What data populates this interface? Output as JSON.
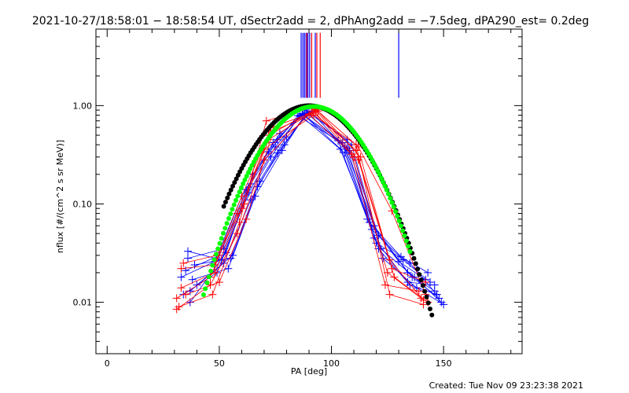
{
  "chart_data": {
    "type": "scatter",
    "title": "2021-10-27/18:58:01 − 18:58:54 UT, dSectr2add = 2, dPhAng2add = −7.5deg, dPA290_est=  0.2deg",
    "xlabel": "PA [deg]",
    "ylabel": "nflux [#/(cm^2 s sr MeV)]",
    "xlim": [
      -5,
      185
    ],
    "ylim": [
      0.003,
      6.0
    ],
    "yscale": "log",
    "x_ticks": [
      0,
      50,
      100,
      150
    ],
    "x_tick_labels": [
      "0",
      "50",
      "100",
      "150"
    ],
    "y_ticks": [
      0.01,
      0.1,
      1.0
    ],
    "y_tick_labels": [
      "0.01",
      "0.10",
      "1.00"
    ],
    "grid": false,
    "colors": {
      "blue": "#0000ff",
      "red": "#ff0000",
      "black": "#000000",
      "green": "#00ff00"
    },
    "fit_curves": [
      {
        "color": "black",
        "center": 90,
        "sigma": 17.5,
        "peak": 1.0,
        "x_range": [
          52,
          145
        ]
      },
      {
        "color": "green",
        "center": 92,
        "sigma": 16.5,
        "peak": 0.98,
        "x_range": [
          43,
          135
        ]
      }
    ],
    "vertical_lines": {
      "blue_x": [
        86.5,
        87.3,
        88.0,
        88.7,
        89.5,
        90.3,
        92.8,
        130.0
      ],
      "red_x": [
        89.0,
        91.2,
        93.5,
        95.0
      ],
      "top_y": 5.5,
      "bottom_y": 1.2
    },
    "series": [
      {
        "color": "blue",
        "points": [
          [
            37,
            0.013
          ],
          [
            52,
            0.025
          ],
          [
            64,
            0.11
          ],
          [
            76,
            0.33
          ],
          [
            88,
            0.78
          ],
          [
            106,
            0.38
          ],
          [
            119,
            0.06
          ],
          [
            134,
            0.02
          ],
          [
            146,
            0.013
          ]
        ]
      },
      {
        "color": "blue",
        "points": [
          [
            35,
            0.021
          ],
          [
            50,
            0.03
          ],
          [
            62,
            0.14
          ],
          [
            74,
            0.42
          ],
          [
            87,
            0.82
          ],
          [
            105,
            0.42
          ],
          [
            118,
            0.055
          ],
          [
            132,
            0.027
          ],
          [
            144,
            0.016
          ]
        ]
      },
      {
        "color": "blue",
        "points": [
          [
            38,
            0.017
          ],
          [
            54,
            0.022
          ],
          [
            66,
            0.12
          ],
          [
            78,
            0.35
          ],
          [
            89,
            0.85
          ],
          [
            108,
            0.35
          ],
          [
            121,
            0.048
          ],
          [
            136,
            0.018
          ],
          [
            148,
            0.011
          ]
        ]
      },
      {
        "color": "blue",
        "points": [
          [
            36,
            0.028
          ],
          [
            52,
            0.035
          ],
          [
            64,
            0.16
          ],
          [
            76,
            0.45
          ],
          [
            88,
            0.9
          ],
          [
            107,
            0.45
          ],
          [
            120,
            0.04
          ],
          [
            135,
            0.025
          ],
          [
            147,
            0.012
          ]
        ]
      },
      {
        "color": "blue",
        "points": [
          [
            34,
            0.012
          ],
          [
            49,
            0.02
          ],
          [
            61,
            0.1
          ],
          [
            73,
            0.3
          ],
          [
            86,
            0.8
          ],
          [
            104,
            0.36
          ],
          [
            117,
            0.065
          ],
          [
            131,
            0.029
          ],
          [
            143,
            0.02
          ]
        ]
      },
      {
        "color": "blue",
        "points": [
          [
            39,
            0.024
          ],
          [
            55,
            0.028
          ],
          [
            67,
            0.15
          ],
          [
            79,
            0.4
          ],
          [
            90,
            0.88
          ],
          [
            109,
            0.4
          ],
          [
            122,
            0.035
          ],
          [
            137,
            0.018
          ],
          [
            149,
            0.01
          ]
        ]
      },
      {
        "color": "blue",
        "points": [
          [
            36,
            0.033
          ],
          [
            51,
            0.027
          ],
          [
            63,
            0.13
          ],
          [
            75,
            0.38
          ],
          [
            87,
            0.83
          ],
          [
            106,
            0.33
          ],
          [
            119,
            0.045
          ],
          [
            134,
            0.016
          ],
          [
            146,
            0.015
          ]
        ]
      },
      {
        "color": "blue",
        "points": [
          [
            40,
            0.015
          ],
          [
            56,
            0.03
          ],
          [
            68,
            0.17
          ],
          [
            80,
            0.48
          ],
          [
            91,
            0.86
          ],
          [
            110,
            0.3
          ],
          [
            123,
            0.028
          ],
          [
            138,
            0.014
          ],
          [
            150,
            0.0095
          ]
        ]
      },
      {
        "color": "blue",
        "points": [
          [
            33,
            0.018
          ],
          [
            48,
            0.026
          ],
          [
            60,
            0.12
          ],
          [
            72,
            0.34
          ],
          [
            85,
            0.79
          ],
          [
            103,
            0.44
          ],
          [
            116,
            0.07
          ],
          [
            130,
            0.026
          ],
          [
            142,
            0.017
          ]
        ]
      },
      {
        "color": "blue",
        "points": [
          [
            37,
            0.01
          ],
          [
            53,
            0.032
          ],
          [
            65,
            0.2
          ],
          [
            77,
            0.52
          ],
          [
            89,
            0.84
          ],
          [
            107,
            0.37
          ],
          [
            121,
            0.035
          ],
          [
            135,
            0.015
          ],
          [
            147,
            0.012
          ]
        ]
      },
      {
        "color": "red",
        "points": [
          [
            31,
            0.011
          ],
          [
            46,
            0.018
          ],
          [
            58,
            0.08
          ],
          [
            70,
            0.36
          ],
          [
            92,
            0.8
          ],
          [
            111,
            0.4
          ],
          [
            126,
            0.012
          ],
          [
            141,
            0.0095
          ]
        ]
      },
      {
        "color": "red",
        "points": [
          [
            33,
            0.022
          ],
          [
            48,
            0.024
          ],
          [
            60,
            0.12
          ],
          [
            72,
            0.5
          ],
          [
            93,
            0.92
          ],
          [
            112,
            0.38
          ],
          [
            127,
            0.085
          ],
          [
            142,
            0.012
          ]
        ]
      },
      {
        "color": "red",
        "points": [
          [
            32,
            0.009
          ],
          [
            47,
            0.012
          ],
          [
            59,
            0.065
          ],
          [
            71,
            0.7
          ],
          [
            91,
            0.95
          ],
          [
            110,
            0.3
          ],
          [
            125,
            0.02
          ],
          [
            140,
            0.011
          ]
        ]
      },
      {
        "color": "red",
        "points": [
          [
            34,
            0.025
          ],
          [
            49,
            0.03
          ],
          [
            61,
            0.1
          ],
          [
            73,
            0.6
          ],
          [
            92,
            0.85
          ],
          [
            111,
            0.35
          ],
          [
            126,
            0.027
          ],
          [
            141,
            0.0105
          ]
        ]
      },
      {
        "color": "red",
        "points": [
          [
            31,
            0.0085
          ],
          [
            46,
            0.015
          ],
          [
            58,
            0.05
          ],
          [
            70,
            0.28
          ],
          [
            90,
            0.82
          ],
          [
            109,
            0.32
          ],
          [
            124,
            0.015
          ],
          [
            139,
            0.013
          ]
        ]
      },
      {
        "color": "red",
        "points": [
          [
            33,
            0.014
          ],
          [
            48,
            0.02
          ],
          [
            60,
            0.09
          ],
          [
            72,
            0.45
          ],
          [
            93,
            0.9
          ],
          [
            112,
            0.28
          ],
          [
            127,
            0.022
          ],
          [
            142,
            0.016
          ]
        ]
      },
      {
        "color": "red",
        "points": [
          [
            35,
            0.012
          ],
          [
            50,
            0.016
          ],
          [
            62,
            0.07
          ],
          [
            74,
            0.55
          ],
          [
            94,
            0.88
          ],
          [
            113,
            0.3
          ],
          [
            128,
            0.018
          ],
          [
            143,
            0.01
          ]
        ]
      }
    ]
  },
  "footer": {
    "created": "Created: Tue Nov 09 23:23:38 2021"
  }
}
